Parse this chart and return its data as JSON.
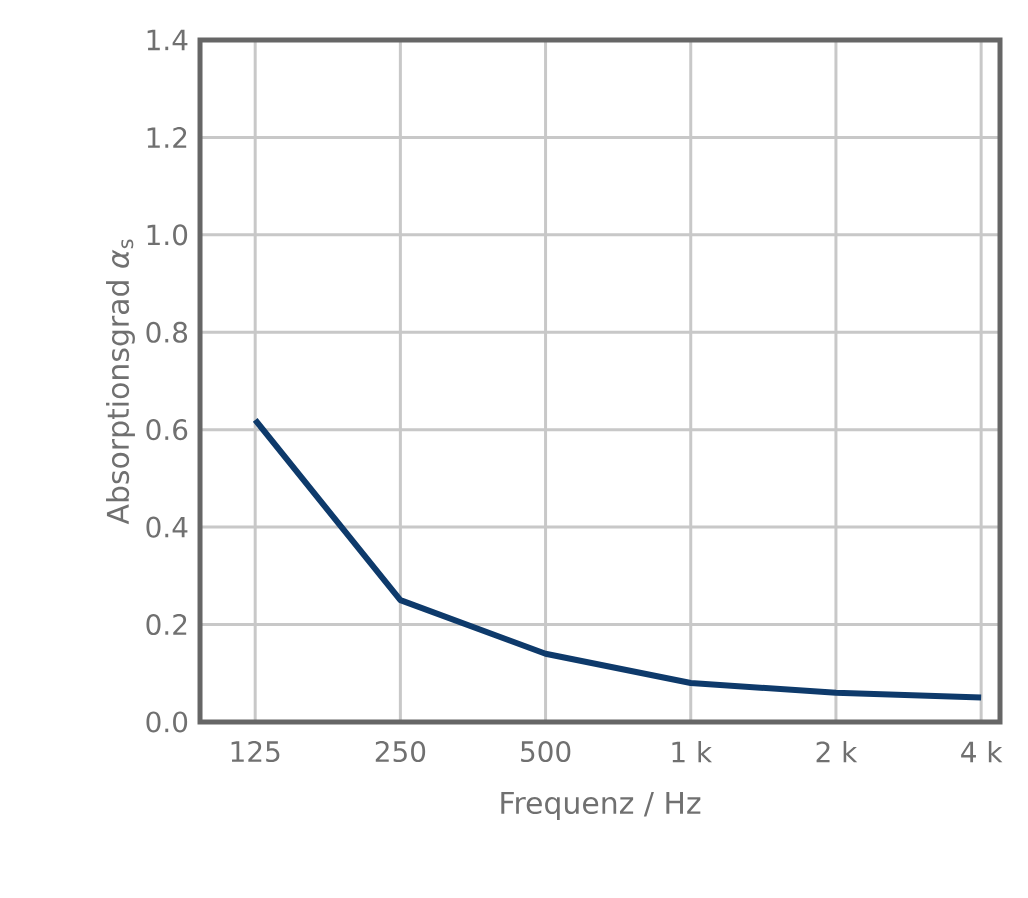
{
  "chart_data": {
    "type": "line",
    "xlabel": "Frequenz / Hz",
    "ylabel": "Absorptionsgrad *α*$_{s}$",
    "categories": [
      "125",
      "250",
      "500",
      "1 k",
      "2 k",
      "4 k"
    ],
    "series": [
      {
        "color": "#0e3a6b",
        "values": [
          0.62,
          0.25,
          0.14,
          0.08,
          0.06,
          0.05
        ]
      }
    ],
    "ylim": [
      0,
      1.4
    ],
    "yticks": [
      {
        "value": 0,
        "label": "0.0"
      },
      0.2,
      0.4,
      0.6,
      0.8,
      {
        "value": 1.0,
        "label": "1.0"
      },
      1.2,
      1.4
    ],
    "grid": true,
    "marker": "none",
    "line_style": "solid"
  }
}
